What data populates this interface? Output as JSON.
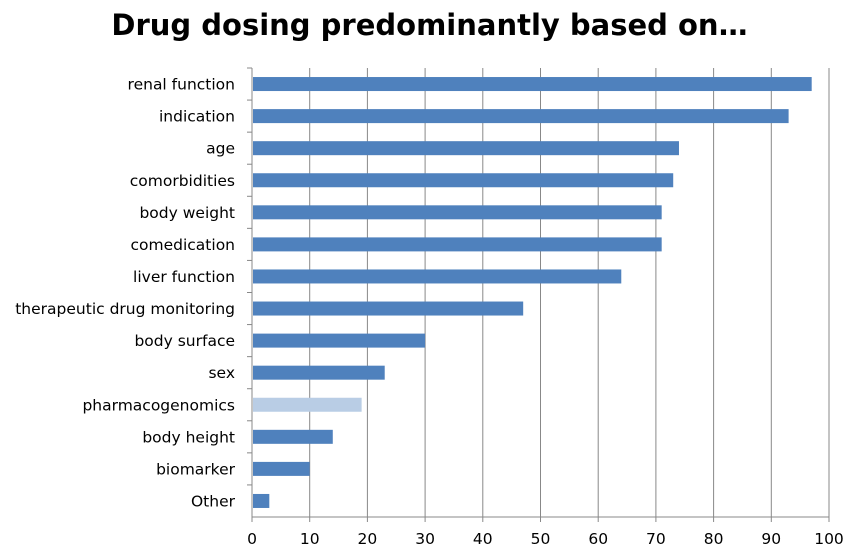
{
  "chart_data": {
    "type": "bar",
    "orientation": "horizontal",
    "title": "Drug dosing predominantly based on…",
    "xlabel": "",
    "ylabel": "",
    "categories": [
      "renal function",
      "indication",
      "age",
      "comorbidities",
      "body weight",
      "comedication",
      "liver function",
      "therapeutic drug monitoring",
      "body surface",
      "sex",
      "pharmacogenomics",
      "body height",
      "biomarker",
      "Other"
    ],
    "values": [
      97,
      93,
      74,
      73,
      71,
      71,
      64,
      47,
      30,
      23,
      19,
      14,
      10,
      3
    ],
    "xlim": [
      0,
      100
    ],
    "xticks": [
      0,
      10,
      20,
      30,
      40,
      50,
      60,
      70,
      80,
      90,
      100
    ],
    "grid": "vertical",
    "legend": "none",
    "colors": {
      "bar": "#4f81bd",
      "highlight_bar": "#b9cde5",
      "grid": "#888888",
      "axis": "#888888"
    },
    "highlight_category": "pharmacogenomics"
  }
}
